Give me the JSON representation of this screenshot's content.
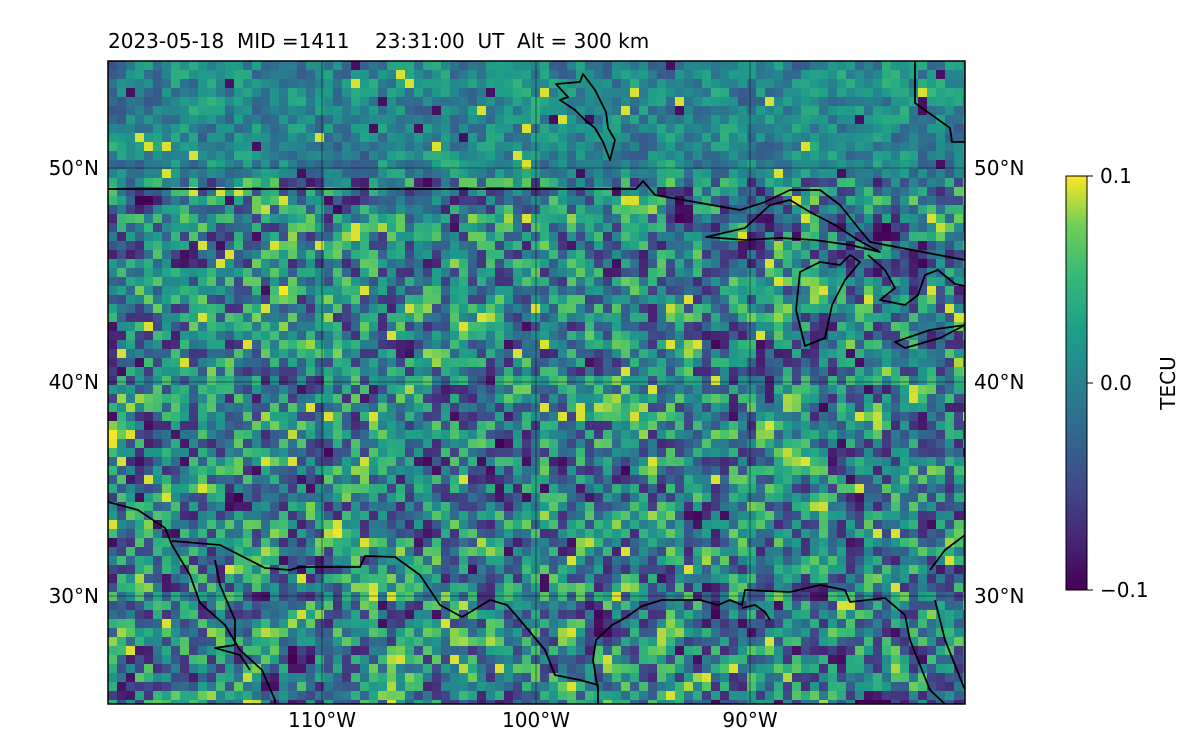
{
  "title": "2023-05-18  MID =1411    23:31:00  UT  Alt = 300 km",
  "map": {
    "lat_ticks": [
      "50°N",
      "40°N",
      "30°N"
    ],
    "lon_ticks": [
      "110°W",
      "100°W",
      "90°W"
    ],
    "lat_range": [
      25,
      55
    ],
    "lon_range": [
      -120,
      -80
    ],
    "grid": true
  },
  "colorbar": {
    "label": "TECU",
    "ticks": [
      "0.1",
      "0.0",
      "−0.1"
    ],
    "range": [
      -0.1,
      0.1
    ],
    "colormap": "viridis"
  },
  "colors": {
    "low": "#440154",
    "mid": "#21918c",
    "high": "#fde725",
    "coast": "#000000"
  }
}
